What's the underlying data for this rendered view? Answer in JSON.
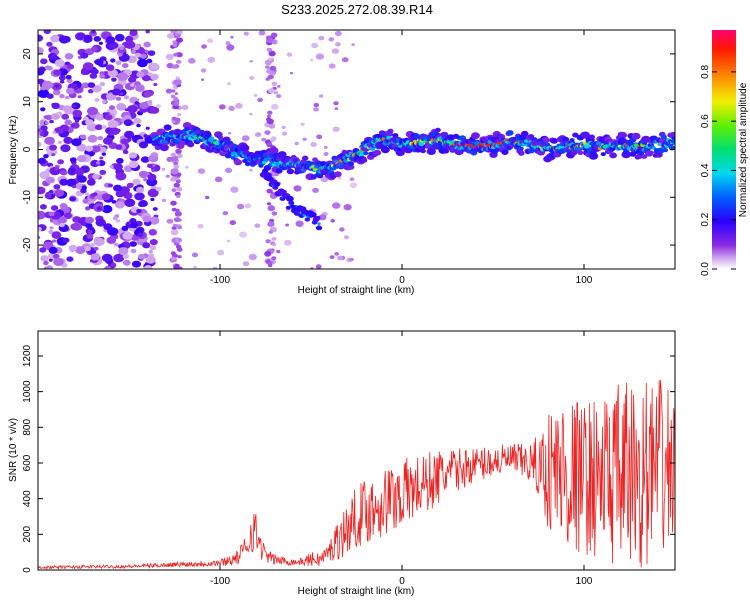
{
  "chart_data": [
    {
      "type": "heatmap",
      "title": "S233.2025.272.08.39.R14",
      "xlabel": "Height of straight line (km)",
      "ylabel": "Frequency (Hz)",
      "xlim": [
        -200,
        150
      ],
      "ylim": [
        -25,
        25
      ],
      "xticks": [
        -100,
        0,
        100
      ],
      "yticks": [
        20,
        10,
        0,
        -10,
        -20
      ],
      "colorbar": {
        "label": "Normalized spectral amplitude",
        "range": [
          0.0,
          0.97
        ],
        "ticks": [
          0.0,
          0.2,
          0.4,
          0.6,
          0.8
        ],
        "tick_labels": [
          "0.0",
          "0.2",
          "0.4",
          "0.6",
          "0.8"
        ]
      },
      "ridge": {
        "x": [
          -135,
          -120,
          -110,
          -100,
          -90,
          -80,
          -70,
          -60,
          -50,
          -40,
          -30,
          -20,
          -10,
          0,
          10,
          20,
          30,
          40,
          50,
          60,
          70,
          80,
          90,
          100,
          110,
          120,
          130,
          140,
          150
        ],
        "freq": [
          2,
          3,
          2.5,
          1,
          -1,
          -2,
          -2.5,
          -3,
          -4,
          -4,
          -2,
          0,
          2,
          1,
          1.5,
          2,
          1,
          0.8,
          0.8,
          2,
          1,
          0,
          0.5,
          1,
          0.5,
          1,
          0.5,
          1,
          1.5
        ]
      },
      "branch": {
        "x": [
          -75,
          -70,
          -65,
          -60,
          -55,
          -50,
          -45
        ],
        "freq": [
          -5,
          -8,
          -10,
          -12,
          -13,
          -14,
          -16
        ]
      }
    },
    {
      "type": "line",
      "title": "",
      "xlabel": "Height of straight line (km)",
      "ylabel": "SNR (10 * v/v)",
      "xlim": [
        -200,
        150
      ],
      "ylim": [
        0,
        1340
      ],
      "xticks": [
        -100,
        0,
        100
      ],
      "yticks": [
        0,
        200,
        400,
        600,
        800,
        1000,
        1200
      ],
      "color": "#ee2222",
      "envelope": {
        "x": [
          -200,
          -150,
          -130,
          -100,
          -90,
          -85,
          -82,
          -79,
          -75,
          -70,
          -65,
          -60,
          -55,
          -50,
          -45,
          -40,
          -35,
          -30,
          -25,
          -20,
          -10,
          0,
          10,
          20,
          30,
          40,
          50,
          60,
          70,
          75,
          80,
          85,
          90,
          100,
          110,
          120,
          130,
          140,
          150
        ],
        "mean": [
          15,
          20,
          28,
          40,
          70,
          140,
          250,
          170,
          80,
          60,
          50,
          45,
          45,
          60,
          60,
          100,
          180,
          230,
          300,
          330,
          380,
          430,
          470,
          520,
          560,
          590,
          610,
          620,
          600,
          580,
          560,
          560,
          540,
          520,
          520,
          520,
          540,
          560,
          580
        ],
        "spread": [
          8,
          10,
          12,
          20,
          40,
          80,
          150,
          100,
          40,
          30,
          25,
          20,
          20,
          40,
          40,
          60,
          120,
          150,
          170,
          190,
          200,
          200,
          180,
          160,
          120,
          100,
          90,
          90,
          110,
          180,
          330,
          420,
          470,
          430,
          470,
          530,
          560,
          520,
          460
        ]
      }
    }
  ]
}
